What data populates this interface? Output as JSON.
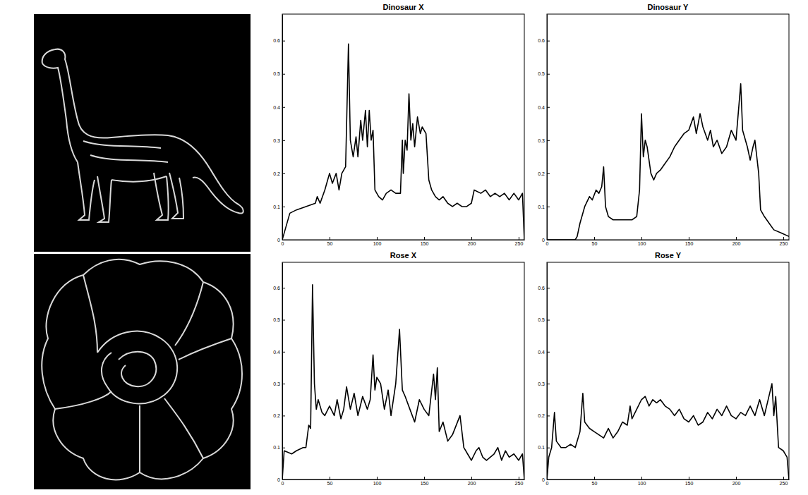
{
  "chart_data": [
    {
      "type": "line",
      "title": "Dinosaur X",
      "x": [
        0,
        3,
        8,
        15,
        25,
        35,
        37,
        40,
        45,
        50,
        53,
        57,
        60,
        63,
        67,
        70,
        72,
        75,
        78,
        80,
        83,
        85,
        88,
        90,
        92,
        94,
        96,
        98,
        102,
        106,
        110,
        115,
        120,
        125,
        127,
        128,
        130,
        132,
        134,
        136,
        138,
        140,
        143,
        146,
        148,
        152,
        155,
        158,
        162,
        166,
        170,
        175,
        180,
        185,
        190,
        195,
        200,
        203,
        210,
        215,
        220,
        225,
        230,
        235,
        240,
        245,
        250,
        254,
        256
      ],
      "series": [
        {
          "color": "#000000",
          "values": [
            0,
            0.03,
            0.08,
            0.09,
            0.1,
            0.11,
            0.13,
            0.11,
            0.15,
            0.2,
            0.17,
            0.2,
            0.15,
            0.2,
            0.22,
            0.59,
            0.3,
            0.25,
            0.31,
            0.25,
            0.36,
            0.3,
            0.39,
            0.28,
            0.39,
            0.3,
            0.33,
            0.15,
            0.13,
            0.12,
            0.14,
            0.15,
            0.14,
            0.14,
            0.3,
            0.2,
            0.3,
            0.27,
            0.44,
            0.3,
            0.35,
            0.28,
            0.37,
            0.32,
            0.34,
            0.32,
            0.18,
            0.15,
            0.13,
            0.12,
            0.13,
            0.11,
            0.1,
            0.11,
            0.1,
            0.1,
            0.11,
            0.15,
            0.14,
            0.15,
            0.13,
            0.14,
            0.13,
            0.14,
            0.12,
            0.14,
            0.12,
            0.14,
            0
          ]
        }
      ],
      "xlim": [
        0,
        256
      ],
      "xticks": [
        0,
        50,
        100,
        150,
        200,
        250
      ],
      "ylim": [
        0,
        0.68
      ],
      "yticks": [
        0,
        0.1,
        0.2,
        0.3,
        0.4,
        0.5,
        0.6
      ]
    },
    {
      "type": "line",
      "title": "Dinosaur Y",
      "x": [
        0,
        30,
        32,
        35,
        40,
        45,
        48,
        52,
        55,
        58,
        60,
        62,
        65,
        70,
        80,
        90,
        95,
        98,
        100,
        102,
        104,
        106,
        110,
        113,
        116,
        120,
        125,
        130,
        135,
        140,
        145,
        150,
        155,
        158,
        162,
        165,
        170,
        173,
        176,
        180,
        185,
        190,
        195,
        200,
        205,
        207,
        212,
        215,
        218,
        220,
        224,
        226,
        230,
        235,
        240,
        248,
        256
      ],
      "series": [
        {
          "color": "#000000",
          "values": [
            0,
            0,
            0.01,
            0.05,
            0.1,
            0.13,
            0.12,
            0.15,
            0.14,
            0.16,
            0.22,
            0.1,
            0.07,
            0.06,
            0.06,
            0.06,
            0.07,
            0.15,
            0.38,
            0.25,
            0.3,
            0.28,
            0.2,
            0.18,
            0.2,
            0.21,
            0.23,
            0.25,
            0.28,
            0.3,
            0.32,
            0.33,
            0.37,
            0.32,
            0.38,
            0.34,
            0.3,
            0.33,
            0.28,
            0.3,
            0.26,
            0.28,
            0.33,
            0.3,
            0.47,
            0.33,
            0.28,
            0.24,
            0.28,
            0.3,
            0.2,
            0.09,
            0.07,
            0.05,
            0.03,
            0.02,
            0.01
          ]
        }
      ],
      "xlim": [
        0,
        256
      ],
      "xticks": [
        0,
        50,
        100,
        150,
        200,
        250
      ],
      "ylim": [
        0,
        0.68
      ],
      "yticks": [
        0,
        0.1,
        0.2,
        0.3,
        0.4,
        0.5,
        0.6
      ]
    },
    {
      "type": "line",
      "title": "Rose X",
      "x": [
        0,
        2,
        10,
        15,
        22,
        25,
        28,
        30,
        32,
        34,
        36,
        38,
        42,
        45,
        50,
        55,
        58,
        62,
        65,
        68,
        72,
        76,
        80,
        85,
        90,
        93,
        96,
        98,
        100,
        104,
        108,
        112,
        115,
        120,
        124,
        127,
        130,
        135,
        140,
        145,
        150,
        155,
        160,
        162,
        164,
        166,
        170,
        175,
        180,
        188,
        192,
        196,
        200,
        205,
        208,
        212,
        216,
        220,
        224,
        228,
        232,
        236,
        240,
        245,
        250,
        254,
        256
      ],
      "series": [
        {
          "color": "#000000",
          "values": [
            0,
            0.09,
            0.08,
            0.09,
            0.1,
            0.1,
            0.17,
            0.16,
            0.61,
            0.3,
            0.22,
            0.25,
            0.21,
            0.2,
            0.23,
            0.2,
            0.25,
            0.19,
            0.22,
            0.29,
            0.22,
            0.27,
            0.2,
            0.26,
            0.22,
            0.25,
            0.39,
            0.28,
            0.32,
            0.3,
            0.22,
            0.28,
            0.2,
            0.3,
            0.47,
            0.28,
            0.26,
            0.22,
            0.18,
            0.25,
            0.22,
            0.2,
            0.33,
            0.25,
            0.35,
            0.15,
            0.18,
            0.12,
            0.14,
            0.2,
            0.1,
            0.08,
            0.06,
            0.09,
            0.1,
            0.07,
            0.06,
            0.07,
            0.08,
            0.1,
            0.06,
            0.09,
            0.07,
            0.08,
            0.06,
            0.08,
            0
          ]
        }
      ],
      "xlim": [
        0,
        256
      ],
      "xticks": [
        0,
        50,
        100,
        150,
        200,
        250
      ],
      "ylim": [
        0,
        0.68
      ],
      "yticks": [
        0,
        0.1,
        0.2,
        0.3,
        0.4,
        0.5,
        0.6
      ]
    },
    {
      "type": "line",
      "title": "Rose Y",
      "x": [
        0,
        2,
        5,
        8,
        10,
        15,
        20,
        25,
        30,
        35,
        38,
        40,
        45,
        50,
        55,
        60,
        65,
        70,
        75,
        80,
        85,
        88,
        90,
        95,
        100,
        104,
        108,
        112,
        116,
        120,
        125,
        130,
        135,
        140,
        145,
        150,
        155,
        160,
        165,
        170,
        175,
        180,
        185,
        190,
        195,
        200,
        205,
        210,
        215,
        220,
        225,
        230,
        238,
        240,
        242,
        245,
        250,
        254,
        256
      ],
      "series": [
        {
          "color": "#000000",
          "values": [
            0,
            0.07,
            0.1,
            0.21,
            0.12,
            0.1,
            0.1,
            0.11,
            0.1,
            0.15,
            0.27,
            0.18,
            0.16,
            0.15,
            0.14,
            0.13,
            0.16,
            0.13,
            0.15,
            0.18,
            0.17,
            0.23,
            0.19,
            0.22,
            0.25,
            0.26,
            0.23,
            0.25,
            0.24,
            0.25,
            0.23,
            0.22,
            0.2,
            0.22,
            0.19,
            0.18,
            0.2,
            0.17,
            0.18,
            0.21,
            0.19,
            0.22,
            0.2,
            0.23,
            0.2,
            0.19,
            0.21,
            0.2,
            0.23,
            0.2,
            0.25,
            0.2,
            0.3,
            0.2,
            0.26,
            0.1,
            0.09,
            0.07,
            0
          ]
        }
      ],
      "xlim": [
        0,
        256
      ],
      "xticks": [
        0,
        50,
        100,
        150,
        200,
        250
      ],
      "ylim": [
        0,
        0.68
      ],
      "yticks": [
        0,
        0.1,
        0.2,
        0.3,
        0.4,
        0.5,
        0.6
      ]
    }
  ]
}
